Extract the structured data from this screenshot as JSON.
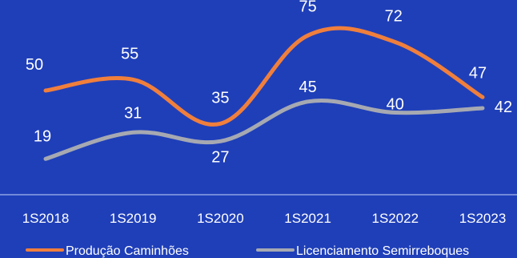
{
  "chart_data": {
    "type": "line",
    "title": "",
    "xlabel": "",
    "ylabel": "",
    "categories": [
      "1S2018",
      "1S2019",
      "1S2020",
      "1S2021",
      "1S2022",
      "1S2023"
    ],
    "series": [
      {
        "name": "Produção Caminhões",
        "values": [
          50,
          55,
          35,
          75,
          72,
          47
        ],
        "color": "#f07f3c"
      },
      {
        "name": "Licenciamento Semirreboques",
        "values": [
          19,
          31,
          27,
          45,
          40,
          42
        ],
        "color": "#a6a9b1"
      }
    ],
    "ylim": [
      0,
      90
    ],
    "grid": false,
    "legend_position": "bottom",
    "background_color": "#1f3fb9",
    "axis_color": "#8ea3e6",
    "label_color": "#ffffff"
  }
}
